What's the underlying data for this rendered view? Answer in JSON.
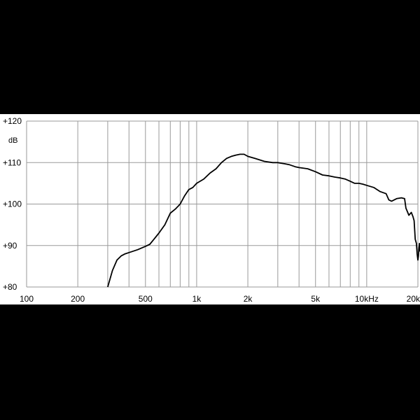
{
  "chart_data": {
    "type": "line",
    "title": "",
    "xlabel": "",
    "ylabel": "dB",
    "x_scale": "log",
    "xlim": [
      100,
      20000
    ],
    "ylim": [
      80,
      120
    ],
    "grid": true,
    "colors": {
      "background": "#000000",
      "plot": "#ffffff",
      "grid": "#9a9a9a",
      "line": "#000000"
    },
    "y_ticks": [
      {
        "value": 120,
        "label": "+120"
      },
      {
        "value": 110,
        "label": "+110"
      },
      {
        "value": 100,
        "label": "+100"
      },
      {
        "value": 90,
        "label": "+90"
      },
      {
        "value": 80,
        "label": "+80"
      }
    ],
    "x_ticks": [
      {
        "value": 100,
        "label": "100"
      },
      {
        "value": 200,
        "label": "200"
      },
      {
        "value": 500,
        "label": "500"
      },
      {
        "value": 1000,
        "label": "1k"
      },
      {
        "value": 2000,
        "label": "2k"
      },
      {
        "value": 5000,
        "label": "5k"
      },
      {
        "value": 10000,
        "label": "10kHz"
      },
      {
        "value": 20000,
        "label": "20k"
      }
    ],
    "x_gridlines": [
      100,
      200,
      300,
      400,
      500,
      600,
      700,
      800,
      900,
      1000,
      2000,
      3000,
      4000,
      5000,
      6000,
      7000,
      8000,
      9000,
      10000,
      20000
    ],
    "series": [
      {
        "points": [
          [
            300,
            80.0
          ],
          [
            320,
            84.0
          ],
          [
            340,
            86.5
          ],
          [
            360,
            87.5
          ],
          [
            380,
            88.0
          ],
          [
            400,
            88.3
          ],
          [
            450,
            89.0
          ],
          [
            500,
            89.8
          ],
          [
            530,
            90.3
          ],
          [
            560,
            91.5
          ],
          [
            600,
            93.0
          ],
          [
            650,
            95.0
          ],
          [
            700,
            97.8
          ],
          [
            750,
            98.8
          ],
          [
            800,
            100.0
          ],
          [
            850,
            102.0
          ],
          [
            900,
            103.5
          ],
          [
            950,
            104.0
          ],
          [
            1000,
            105.0
          ],
          [
            1100,
            106.0
          ],
          [
            1200,
            107.5
          ],
          [
            1300,
            108.5
          ],
          [
            1400,
            110.0
          ],
          [
            1500,
            111.0
          ],
          [
            1600,
            111.5
          ],
          [
            1700,
            111.8
          ],
          [
            1800,
            112.0
          ],
          [
            1900,
            112.0
          ],
          [
            2000,
            111.5
          ],
          [
            2200,
            111.0
          ],
          [
            2500,
            110.3
          ],
          [
            2800,
            110.0
          ],
          [
            3000,
            110.0
          ],
          [
            3300,
            109.7
          ],
          [
            3500,
            109.5
          ],
          [
            3800,
            109.0
          ],
          [
            4000,
            108.8
          ],
          [
            4500,
            108.5
          ],
          [
            5000,
            107.8
          ],
          [
            5500,
            107.0
          ],
          [
            6000,
            106.8
          ],
          [
            6500,
            106.5
          ],
          [
            7000,
            106.3
          ],
          [
            7500,
            106.0
          ],
          [
            8000,
            105.5
          ],
          [
            8500,
            105.0
          ],
          [
            9000,
            105.0
          ],
          [
            9500,
            104.8
          ],
          [
            10000,
            104.5
          ],
          [
            11000,
            104.0
          ],
          [
            12000,
            103.0
          ],
          [
            13000,
            102.5
          ],
          [
            13500,
            101.0
          ],
          [
            14000,
            100.7
          ],
          [
            15000,
            101.3
          ],
          [
            16000,
            101.5
          ],
          [
            16700,
            101.3
          ],
          [
            17000,
            99.0
          ],
          [
            17300,
            98.3
          ],
          [
            17700,
            97.3
          ],
          [
            18300,
            98.0
          ],
          [
            18700,
            97.0
          ],
          [
            19000,
            96.0
          ],
          [
            19300,
            91.5
          ],
          [
            19600,
            90.5
          ],
          [
            19800,
            88.0
          ],
          [
            20000,
            86.5
          ],
          [
            20150,
            87.5
          ],
          [
            20300,
            89.5
          ],
          [
            20450,
            90.5
          ],
          [
            20550,
            89.0
          ],
          [
            20650,
            88.5
          ]
        ]
      }
    ]
  }
}
